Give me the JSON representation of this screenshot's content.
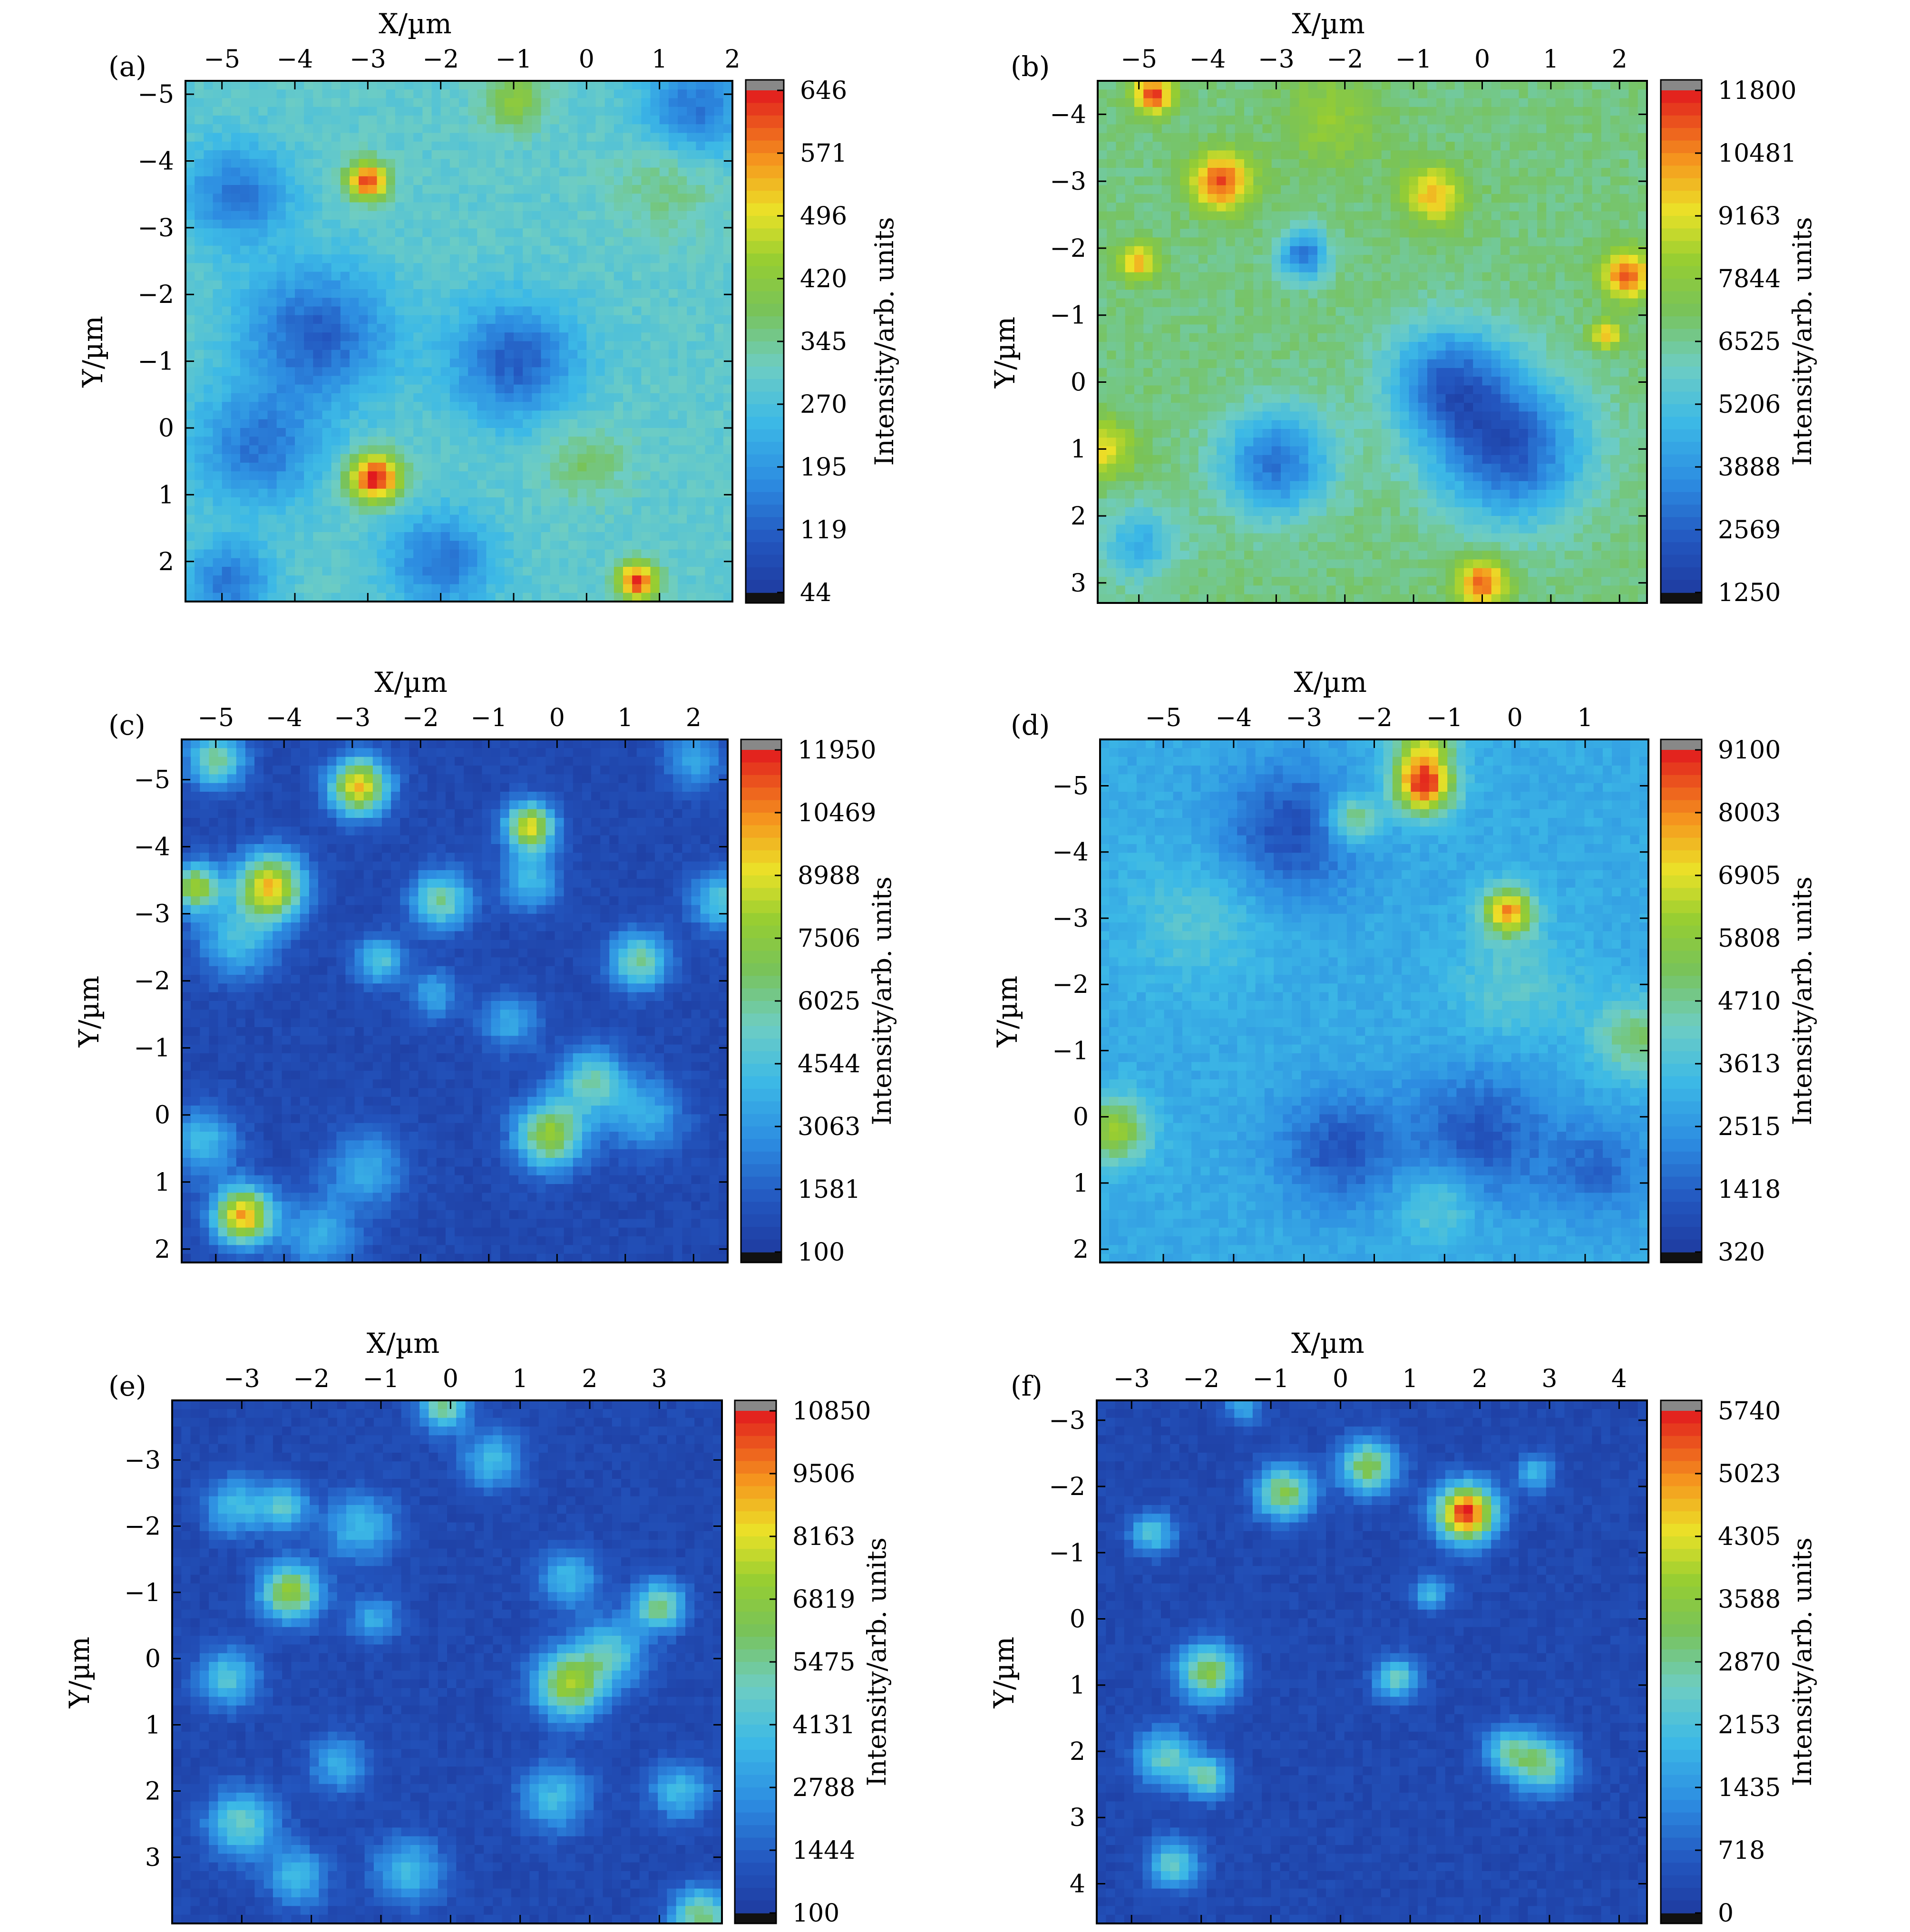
{
  "figure": {
    "panels": [
      "a",
      "b",
      "c",
      "d",
      "e",
      "f"
    ]
  },
  "chart_data": [
    {
      "panel": "a",
      "label": "(a)",
      "type": "heatmap",
      "xlabel": "X/µm",
      "ylabel": "Y/µm",
      "xticks": [
        -5,
        -4,
        -3,
        -2,
        -1,
        0,
        1,
        2
      ],
      "yticks": [
        -5,
        -4,
        -3,
        -2,
        -1,
        0,
        1,
        2
      ],
      "xtick_labels": [
        "−5",
        "−4",
        "−3",
        "−2",
        "−1",
        "0",
        "1",
        "2"
      ],
      "ytick_labels": [
        "−5",
        "−4",
        "−3",
        "−2",
        "−1",
        "0",
        "1",
        "2"
      ],
      "xlim": [
        -5.5,
        2.0
      ],
      "ylim": [
        -5.2,
        2.6
      ],
      "colorbar_label": "Intensity/arb. units",
      "colorbar_ticks": [
        "646",
        "571",
        "496",
        "420",
        "345",
        "270",
        "195",
        "119",
        "44"
      ],
      "range": [
        44,
        646
      ],
      "background": 0.42,
      "blobs": [
        {
          "x": -3.0,
          "y": -3.7,
          "amp": 0.55,
          "r": 0.2
        },
        {
          "x": -2.9,
          "y": 0.75,
          "amp": 0.6,
          "r": 0.25
        },
        {
          "x": 0.7,
          "y": 2.3,
          "amp": 0.55,
          "r": 0.2
        },
        {
          "x": -1.0,
          "y": -4.9,
          "amp": 0.2,
          "r": 0.3
        },
        {
          "x": -3.7,
          "y": -1.4,
          "amp": -0.3,
          "r": 0.7
        },
        {
          "x": -1.0,
          "y": -1.0,
          "amp": -0.3,
          "r": 0.6
        },
        {
          "x": -4.5,
          "y": 0.3,
          "amp": -0.25,
          "r": 0.6
        },
        {
          "x": 1.5,
          "y": -4.8,
          "amp": -0.25,
          "r": 0.5
        },
        {
          "x": -4.8,
          "y": -3.5,
          "amp": -0.25,
          "r": 0.5
        },
        {
          "x": -2.0,
          "y": 2.0,
          "amp": -0.25,
          "r": 0.5
        },
        {
          "x": -4.9,
          "y": 2.3,
          "amp": -0.25,
          "r": 0.4
        },
        {
          "x": 0.0,
          "y": 0.5,
          "amp": 0.12,
          "r": 0.4
        },
        {
          "x": 1.1,
          "y": -3.6,
          "amp": 0.1,
          "r": 0.5
        }
      ]
    },
    {
      "panel": "b",
      "label": "(b)",
      "type": "heatmap",
      "xlabel": "X/µm",
      "ylabel": "Y/µm",
      "xticks": [
        -5,
        -4,
        -3,
        -2,
        -1,
        0,
        1,
        2
      ],
      "yticks": [
        -4,
        -3,
        -2,
        -1,
        0,
        1,
        2,
        3
      ],
      "xtick_labels": [
        "−5",
        "−4",
        "−3",
        "−2",
        "−1",
        "0",
        "1",
        "2"
      ],
      "ytick_labels": [
        "−4",
        "−3",
        "−2",
        "−1",
        "0",
        "1",
        "2",
        "3"
      ],
      "xlim": [
        -5.6,
        2.4
      ],
      "ylim": [
        -4.5,
        3.3
      ],
      "colorbar_label": "Intensity/arb. units",
      "colorbar_ticks": [
        "11800",
        "10481",
        "9163",
        "7844",
        "6525",
        "5206",
        "3888",
        "2569",
        "1250"
      ],
      "range": [
        1250,
        11800
      ],
      "background": 0.52,
      "blobs": [
        {
          "x": -4.8,
          "y": -4.3,
          "amp": 0.45,
          "r": 0.2
        },
        {
          "x": -3.8,
          "y": -3.0,
          "amp": 0.42,
          "r": 0.3
        },
        {
          "x": -5.0,
          "y": -1.8,
          "amp": 0.3,
          "r": 0.2
        },
        {
          "x": -0.7,
          "y": -2.8,
          "amp": 0.3,
          "r": 0.3
        },
        {
          "x": 2.1,
          "y": -1.6,
          "amp": 0.42,
          "r": 0.25
        },
        {
          "x": 1.8,
          "y": -0.7,
          "amp": 0.3,
          "r": 0.15
        },
        {
          "x": 0.0,
          "y": 3.0,
          "amp": 0.42,
          "r": 0.25
        },
        {
          "x": -5.5,
          "y": 1.0,
          "amp": 0.25,
          "r": 0.3
        },
        {
          "x": 0.4,
          "y": 1.0,
          "amp": -0.42,
          "r": 0.75
        },
        {
          "x": -0.5,
          "y": 0.0,
          "amp": -0.35,
          "r": 0.6
        },
        {
          "x": -3.0,
          "y": 1.2,
          "amp": -0.35,
          "r": 0.55
        },
        {
          "x": -2.6,
          "y": -1.9,
          "amp": -0.35,
          "r": 0.25
        },
        {
          "x": -5.0,
          "y": 2.4,
          "amp": -0.2,
          "r": 0.4
        },
        {
          "x": -2.2,
          "y": -3.9,
          "amp": 0.12,
          "r": 0.5
        }
      ]
    },
    {
      "panel": "c",
      "label": "(c)",
      "type": "heatmap",
      "xlabel": "X/µm",
      "ylabel": "Y/µm",
      "xticks": [
        -5,
        -4,
        -3,
        -2,
        -1,
        0,
        1,
        2
      ],
      "yticks": [
        -5,
        -4,
        -3,
        -2,
        -1,
        0,
        1,
        2
      ],
      "xtick_labels": [
        "−5",
        "−4",
        "−3",
        "−2",
        "−1",
        "0",
        "1",
        "2"
      ],
      "ytick_labels": [
        "−5",
        "−4",
        "−3",
        "−2",
        "−1",
        "0",
        "1",
        "2"
      ],
      "xlim": [
        -5.5,
        2.5
      ],
      "ylim": [
        -5.6,
        2.2
      ],
      "colorbar_label": "Intensity/arb. units",
      "colorbar_ticks": [
        "11950",
        "10469",
        "8988",
        "7506",
        "6025",
        "4544",
        "3063",
        "1581",
        "100"
      ],
      "range": [
        100,
        11950
      ],
      "background": 0.05,
      "blobs": [
        {
          "x": -5.0,
          "y": -5.3,
          "amp": 0.45,
          "r": 0.3
        },
        {
          "x": -2.9,
          "y": -4.9,
          "amp": 0.75,
          "r": 0.3
        },
        {
          "x": -0.4,
          "y": -4.3,
          "amp": 0.7,
          "r": 0.25
        },
        {
          "x": -0.4,
          "y": -3.5,
          "amp": 0.3,
          "r": 0.3
        },
        {
          "x": -5.3,
          "y": -3.4,
          "amp": 0.6,
          "r": 0.25
        },
        {
          "x": -4.2,
          "y": -3.4,
          "amp": 0.75,
          "r": 0.35
        },
        {
          "x": -4.7,
          "y": -2.6,
          "amp": 0.3,
          "r": 0.4
        },
        {
          "x": -1.7,
          "y": -3.2,
          "amp": 0.45,
          "r": 0.3
        },
        {
          "x": -2.6,
          "y": -2.3,
          "amp": 0.35,
          "r": 0.25
        },
        {
          "x": 1.2,
          "y": -2.3,
          "amp": 0.45,
          "r": 0.3
        },
        {
          "x": -1.8,
          "y": -1.8,
          "amp": 0.25,
          "r": 0.25
        },
        {
          "x": -0.7,
          "y": -1.4,
          "amp": 0.25,
          "r": 0.3
        },
        {
          "x": -0.1,
          "y": 0.3,
          "amp": 0.6,
          "r": 0.35
        },
        {
          "x": 0.5,
          "y": -0.5,
          "amp": 0.4,
          "r": 0.35
        },
        {
          "x": 1.3,
          "y": 0.0,
          "amp": 0.25,
          "r": 0.4
        },
        {
          "x": -4.6,
          "y": 1.5,
          "amp": 0.8,
          "r": 0.3
        },
        {
          "x": -5.2,
          "y": 0.4,
          "amp": 0.3,
          "r": 0.35
        },
        {
          "x": -2.8,
          "y": 0.8,
          "amp": 0.25,
          "r": 0.4
        },
        {
          "x": -3.5,
          "y": 1.8,
          "amp": 0.25,
          "r": 0.4
        },
        {
          "x": 2.4,
          "y": -3.2,
          "amp": 0.35,
          "r": 0.3
        },
        {
          "x": 2.0,
          "y": -5.3,
          "amp": 0.25,
          "r": 0.3
        }
      ]
    },
    {
      "panel": "d",
      "label": "(d)",
      "type": "heatmap",
      "xlabel": "X/µm",
      "ylabel": "Y/µm",
      "xticks": [
        -5,
        -4,
        -3,
        -2,
        -1,
        0,
        1
      ],
      "yticks": [
        -5,
        -4,
        -3,
        -2,
        -1,
        0,
        1,
        2
      ],
      "xtick_labels": [
        "−5",
        "−4",
        "−3",
        "−2",
        "−1",
        "0",
        "1"
      ],
      "ytick_labels": [
        "−5",
        "−4",
        "−3",
        "−2",
        "−1",
        "0",
        "1",
        "2"
      ],
      "xlim": [
        -5.9,
        1.9
      ],
      "ylim": [
        -5.7,
        2.2
      ],
      "colorbar_label": "Intensity/arb. units",
      "colorbar_ticks": [
        "9100",
        "8003",
        "6905",
        "5808",
        "4710",
        "3613",
        "2515",
        "1418",
        "320"
      ],
      "range": [
        320,
        9100
      ],
      "background": 0.3,
      "blobs": [
        {
          "x": -1.3,
          "y": -5.0,
          "amp": 0.65,
          "r": 0.3
        },
        {
          "x": -1.3,
          "y": -5.6,
          "amp": 0.35,
          "r": 0.3
        },
        {
          "x": -2.3,
          "y": -4.5,
          "amp": 0.3,
          "r": 0.25
        },
        {
          "x": -0.1,
          "y": -3.1,
          "amp": 0.55,
          "r": 0.25
        },
        {
          "x": -3.2,
          "y": -4.3,
          "amp": -0.22,
          "r": 0.7
        },
        {
          "x": -2.5,
          "y": 0.5,
          "amp": -0.2,
          "r": 0.6
        },
        {
          "x": -0.5,
          "y": 0.3,
          "amp": -0.2,
          "r": 0.7
        },
        {
          "x": 1.2,
          "y": 0.8,
          "amp": -0.15,
          "r": 0.5
        },
        {
          "x": -5.7,
          "y": 0.2,
          "amp": 0.35,
          "r": 0.35
        },
        {
          "x": 1.7,
          "y": -1.2,
          "amp": 0.25,
          "r": 0.4
        },
        {
          "x": -4.5,
          "y": -3.0,
          "amp": 0.1,
          "r": 0.7
        },
        {
          "x": -1.1,
          "y": 1.3,
          "amp": 0.15,
          "r": 0.4
        },
        {
          "x": 0.0,
          "y": -2.0,
          "amp": 0.12,
          "r": 0.6
        }
      ]
    },
    {
      "panel": "e",
      "label": "(e)",
      "type": "heatmap",
      "xlabel": "X/µm",
      "ylabel": "Y/µm",
      "xticks": [
        -3,
        -2,
        -1,
        0,
        1,
        2,
        3
      ],
      "yticks": [
        -3,
        -2,
        -1,
        0,
        1,
        2,
        3
      ],
      "xtick_labels": [
        "−3",
        "−2",
        "−1",
        "0",
        "1",
        "2",
        "3"
      ],
      "ytick_labels": [
        "−3",
        "−2",
        "−1",
        "0",
        "1",
        "2",
        "3"
      ],
      "xlim": [
        -4.0,
        3.9
      ],
      "ylim": [
        -3.9,
        4.0
      ],
      "colorbar_label": "Intensity/arb. units",
      "colorbar_ticks": [
        "10850",
        "9506",
        "8163",
        "6819",
        "5475",
        "4131",
        "2788",
        "1444",
        "100"
      ],
      "range": [
        100,
        10850
      ],
      "background": 0.05,
      "blobs": [
        {
          "x": -2.3,
          "y": -1.0,
          "amp": 0.6,
          "r": 0.3
        },
        {
          "x": 1.7,
          "y": 0.4,
          "amp": 0.6,
          "r": 0.35
        },
        {
          "x": 2.3,
          "y": -0.1,
          "amp": 0.35,
          "r": 0.35
        },
        {
          "x": 3.0,
          "y": -0.8,
          "amp": 0.5,
          "r": 0.25
        },
        {
          "x": -3.1,
          "y": -2.3,
          "amp": 0.3,
          "r": 0.3
        },
        {
          "x": -2.4,
          "y": -2.3,
          "amp": 0.35,
          "r": 0.25
        },
        {
          "x": -1.3,
          "y": -2.0,
          "amp": 0.3,
          "r": 0.35
        },
        {
          "x": -0.1,
          "y": -3.8,
          "amp": 0.45,
          "r": 0.25
        },
        {
          "x": 0.6,
          "y": -3.0,
          "amp": 0.3,
          "r": 0.3
        },
        {
          "x": -3.2,
          "y": 0.3,
          "amp": 0.35,
          "r": 0.3
        },
        {
          "x": -3.0,
          "y": 2.5,
          "amp": 0.4,
          "r": 0.35
        },
        {
          "x": -2.2,
          "y": 3.3,
          "amp": 0.3,
          "r": 0.3
        },
        {
          "x": 1.5,
          "y": 2.1,
          "amp": 0.3,
          "r": 0.35
        },
        {
          "x": 3.6,
          "y": 3.9,
          "amp": 0.5,
          "r": 0.3
        },
        {
          "x": 3.3,
          "y": 2.0,
          "amp": 0.3,
          "r": 0.3
        },
        {
          "x": -0.6,
          "y": 3.2,
          "amp": 0.3,
          "r": 0.35
        },
        {
          "x": 1.7,
          "y": -1.2,
          "amp": 0.3,
          "r": 0.3
        },
        {
          "x": -1.6,
          "y": 1.6,
          "amp": 0.25,
          "r": 0.3
        },
        {
          "x": -1.1,
          "y": -0.6,
          "amp": 0.25,
          "r": 0.25
        }
      ]
    },
    {
      "panel": "f",
      "label": "(f)",
      "type": "heatmap",
      "xlabel": "X/µm",
      "ylabel": "Y/µm",
      "xticks": [
        -3,
        -2,
        -1,
        0,
        1,
        2,
        3,
        4
      ],
      "yticks": [
        -3,
        -2,
        -1,
        0,
        1,
        2,
        3,
        4
      ],
      "xtick_labels": [
        "−3",
        "−2",
        "−1",
        "0",
        "1",
        "2",
        "3",
        "4"
      ],
      "ytick_labels": [
        "−3",
        "−2",
        "−1",
        "0",
        "1",
        "2",
        "3",
        "4"
      ],
      "xlim": [
        -3.5,
        4.4
      ],
      "ylim": [
        -3.3,
        4.6
      ],
      "colorbar_label": "Intensity/arb. units",
      "colorbar_ticks": [
        "5740",
        "5023",
        "4305",
        "3588",
        "2870",
        "2153",
        "1435",
        "718",
        "0"
      ],
      "range": [
        0,
        5740
      ],
      "background": 0.05,
      "blobs": [
        {
          "x": 1.8,
          "y": -1.6,
          "amp": 0.95,
          "r": 0.3
        },
        {
          "x": -0.8,
          "y": -1.9,
          "amp": 0.55,
          "r": 0.28
        },
        {
          "x": 0.4,
          "y": -2.3,
          "amp": 0.55,
          "r": 0.28
        },
        {
          "x": -1.9,
          "y": 0.8,
          "amp": 0.55,
          "r": 0.3
        },
        {
          "x": 0.8,
          "y": 0.9,
          "amp": 0.4,
          "r": 0.22
        },
        {
          "x": 2.9,
          "y": 2.2,
          "amp": 0.45,
          "r": 0.3
        },
        {
          "x": 2.4,
          "y": 2.0,
          "amp": 0.35,
          "r": 0.25
        },
        {
          "x": -2.5,
          "y": 2.1,
          "amp": 0.4,
          "r": 0.3
        },
        {
          "x": -1.9,
          "y": 2.4,
          "amp": 0.4,
          "r": 0.22
        },
        {
          "x": -2.4,
          "y": 3.7,
          "amp": 0.4,
          "r": 0.25
        },
        {
          "x": -2.7,
          "y": -1.3,
          "amp": 0.35,
          "r": 0.22
        },
        {
          "x": 2.8,
          "y": -2.2,
          "amp": 0.3,
          "r": 0.18
        },
        {
          "x": 1.3,
          "y": -0.4,
          "amp": 0.3,
          "r": 0.18
        },
        {
          "x": -1.4,
          "y": -3.2,
          "amp": 0.25,
          "r": 0.18
        }
      ]
    }
  ]
}
